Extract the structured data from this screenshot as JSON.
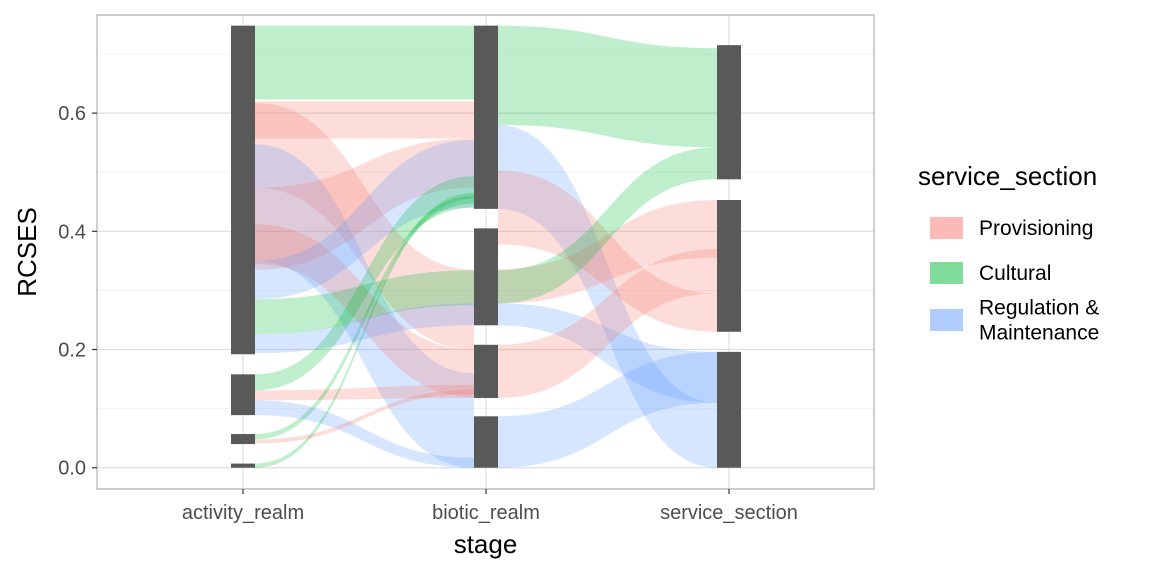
{
  "chart_data": {
    "type": "alluvial",
    "xlabel": "stage",
    "ylabel": "RCSES",
    "ylim": [
      -0.036,
      0.766
    ],
    "y_ticks": [
      0.0,
      0.2,
      0.4,
      0.6
    ],
    "y_tick_labels": [
      "0.0",
      "0.2",
      "0.4",
      "0.6"
    ],
    "grid": true,
    "legend_position": "right",
    "stages": [
      "activity_realm",
      "biotic_realm",
      "service_section"
    ],
    "legend": {
      "title": "service_section",
      "entries": [
        {
          "key": "provisioning",
          "label": "Provisioning",
          "color": "#F8766D"
        },
        {
          "key": "cultural",
          "label": "Cultural",
          "color": "#00BA38"
        },
        {
          "key": "regulation",
          "label": "Regulation &\nMaintenance",
          "color": "#619CFF"
        }
      ]
    },
    "strata": [
      {
        "stage": 0,
        "y0": 0.192,
        "y1": 0.748
      },
      {
        "stage": 0,
        "y0": 0.089,
        "y1": 0.158
      },
      {
        "stage": 0,
        "y0": 0.04,
        "y1": 0.057
      },
      {
        "stage": 0,
        "y0": 0.0,
        "y1": 0.007
      },
      {
        "stage": 1,
        "y0": 0.438,
        "y1": 0.748
      },
      {
        "stage": 1,
        "y0": 0.241,
        "y1": 0.405
      },
      {
        "stage": 1,
        "y0": 0.118,
        "y1": 0.208
      },
      {
        "stage": 1,
        "y0": 0.0,
        "y1": 0.087
      },
      {
        "stage": 2,
        "y0": 0.488,
        "y1": 0.715
      },
      {
        "stage": 2,
        "y0": 0.23,
        "y1": 0.453
      },
      {
        "stage": 2,
        "y0": 0.0,
        "y1": 0.196
      }
    ],
    "flows": [
      {
        "seg": 0,
        "category": "cultural",
        "a": [
          0.623,
          0.748
        ],
        "b": [
          0.623,
          0.748
        ]
      },
      {
        "seg": 0,
        "category": "provisioning",
        "a": [
          0.557,
          0.62
        ],
        "b": [
          0.557,
          0.62
        ]
      },
      {
        "seg": 0,
        "category": "provisioning",
        "a": [
          0.474,
          0.617
        ],
        "b": [
          0.2,
          0.335
        ]
      },
      {
        "seg": 0,
        "category": "regulation",
        "a": [
          0.35,
          0.547
        ],
        "b": [
          0.0,
          0.16
        ]
      },
      {
        "seg": 0,
        "category": "provisioning",
        "a": [
          0.335,
          0.474
        ],
        "b": [
          0.474,
          0.557
        ]
      },
      {
        "seg": 0,
        "category": "provisioning",
        "a": [
          0.345,
          0.412
        ],
        "b": [
          0.12,
          0.2
        ]
      },
      {
        "seg": 0,
        "category": "regulation",
        "a": [
          0.285,
          0.35
        ],
        "b": [
          0.44,
          0.555
        ]
      },
      {
        "seg": 0,
        "category": "cultural",
        "a": [
          0.226,
          0.285
        ],
        "b": [
          0.275,
          0.334
        ]
      },
      {
        "seg": 0,
        "category": "regulation",
        "a": [
          0.194,
          0.226
        ],
        "b": [
          0.241,
          0.278
        ]
      },
      {
        "seg": 0,
        "category": "cultural",
        "a": [
          0.131,
          0.158
        ],
        "b": [
          0.44,
          0.493
        ]
      },
      {
        "seg": 0,
        "category": "provisioning",
        "a": [
          0.114,
          0.131
        ],
        "b": [
          0.118,
          0.14
        ]
      },
      {
        "seg": 0,
        "category": "regulation",
        "a": [
          0.089,
          0.114
        ],
        "b": [
          0.0,
          0.017
        ]
      },
      {
        "seg": 0,
        "category": "provisioning",
        "a": [
          0.041,
          0.048
        ],
        "b": [
          0.125,
          0.132
        ]
      },
      {
        "seg": 0,
        "category": "cultural",
        "a": [
          0.048,
          0.057
        ],
        "b": [
          0.447,
          0.46
        ]
      },
      {
        "seg": 0,
        "category": "cultural",
        "a": [
          0.0,
          0.007
        ],
        "b": [
          0.455,
          0.465
        ]
      },
      {
        "seg": 1,
        "category": "cultural",
        "a": [
          0.58,
          0.748
        ],
        "b": [
          0.542,
          0.71
        ]
      },
      {
        "seg": 1,
        "category": "regulation",
        "a": [
          0.438,
          0.58
        ],
        "b": [
          0.0,
          0.11
        ]
      },
      {
        "seg": 1,
        "category": "provisioning",
        "a": [
          0.378,
          0.503
        ],
        "b": [
          0.23,
          0.295
        ]
      },
      {
        "seg": 1,
        "category": "provisioning",
        "a": [
          0.278,
          0.336
        ],
        "b": [
          0.355,
          0.453
        ]
      },
      {
        "seg": 1,
        "category": "cultural",
        "a": [
          0.278,
          0.334
        ],
        "b": [
          0.488,
          0.542
        ]
      },
      {
        "seg": 1,
        "category": "regulation",
        "a": [
          0.241,
          0.278
        ],
        "b": [
          0.11,
          0.196
        ]
      },
      {
        "seg": 1,
        "category": "provisioning",
        "a": [
          0.118,
          0.208
        ],
        "b": [
          0.295,
          0.37
        ]
      },
      {
        "seg": 1,
        "category": "regulation",
        "a": [
          0.0,
          0.087
        ],
        "b": [
          0.11,
          0.196
        ]
      }
    ]
  }
}
